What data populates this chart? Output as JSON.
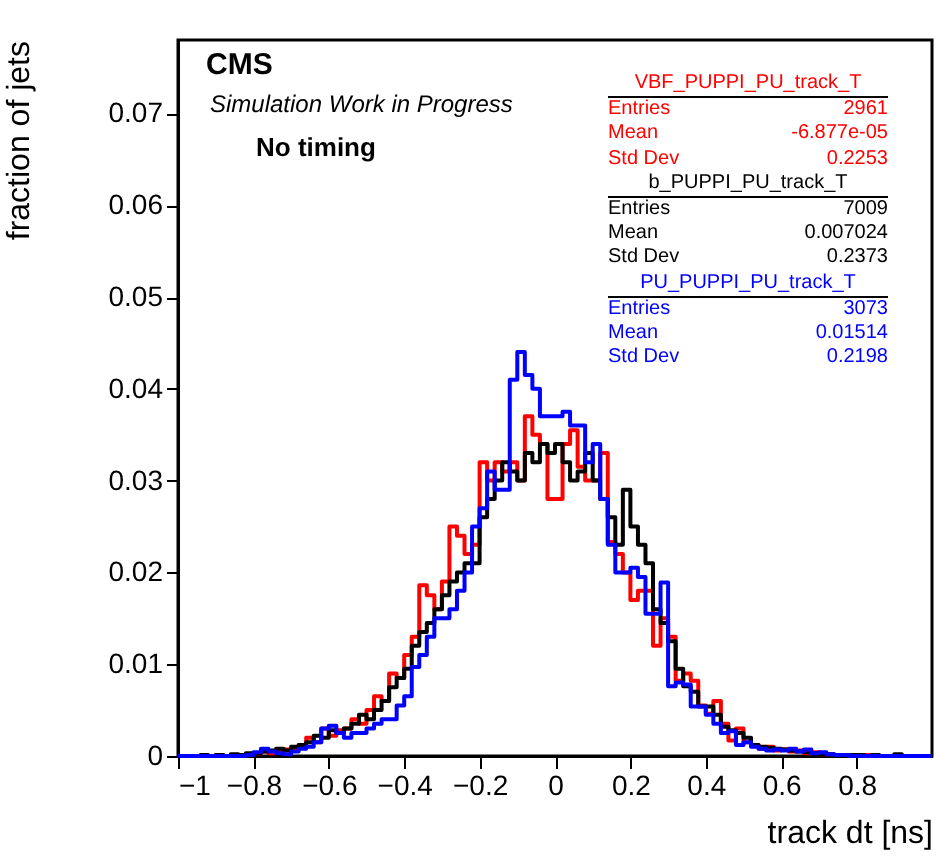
{
  "chart_data": {
    "type": "histogram",
    "xlabel": "track dt [ns]",
    "ylabel": "fraction of jets",
    "annotations": [
      "CMS",
      "Simulation Work in Progress",
      "No timing",
      "Entries",
      "2961",
      "Mean",
      "-6.877e-05",
      "Std Dev",
      "0.2253",
      "Entries",
      "7009",
      "Mean",
      "0.007024",
      "Std Dev",
      "0.2373",
      "Entries",
      "3073",
      "Mean",
      "0.01514",
      "Std Dev",
      "0.2198"
    ],
    "bins": [
      -1,
      -0.98,
      -0.96,
      -0.94,
      -0.92,
      -0.9,
      -0.88,
      -0.86,
      -0.84,
      -0.82,
      -0.8,
      -0.78,
      -0.76,
      -0.74,
      -0.72,
      -0.7,
      -0.68,
      -0.66,
      -0.64,
      -0.62,
      -0.6,
      -0.58,
      -0.56,
      -0.54,
      -0.52,
      -0.5,
      -0.48,
      -0.46,
      -0.44,
      -0.42,
      -0.4,
      -0.38,
      -0.36,
      -0.34,
      -0.32,
      -0.3,
      -0.28,
      -0.26,
      -0.24,
      -0.22,
      -0.2,
      -0.18,
      -0.16,
      -0.14,
      -0.12,
      -0.1,
      -0.08,
      -0.06,
      -0.04,
      -0.02,
      0,
      0.02,
      0.04,
      0.06,
      0.08,
      0.1,
      0.12,
      0.14,
      0.16,
      0.18,
      0.2,
      0.22,
      0.24,
      0.26,
      0.28,
      0.3,
      0.32,
      0.34,
      0.36,
      0.38,
      0.4,
      0.42,
      0.44,
      0.46,
      0.48,
      0.5,
      0.52,
      0.54,
      0.56,
      0.58,
      0.6,
      0.62,
      0.64,
      0.66,
      0.68,
      0.7,
      0.72,
      0.74,
      0.76,
      0.78,
      0.8,
      0.82,
      0.84,
      0.86,
      0.88,
      0.9,
      0.92,
      0.94,
      0.96,
      0.98,
      1
    ],
    "series": [
      {
        "name": "VBF_PUPPI_PU_track_T",
        "color": "#ff0000",
        "values": [
          0,
          0,
          0,
          0,
          0,
          0.0001,
          0,
          0,
          0.0001,
          0.0002,
          0.0003,
          0.0005,
          0.0003,
          0.0005,
          0.0007,
          0.0008,
          0.0012,
          0.002,
          0.0015,
          0.003,
          0.0022,
          0.0028,
          0.003,
          0.004,
          0.0035,
          0.005,
          0.0065,
          0.006,
          0.009,
          0.0085,
          0.011,
          0.013,
          0.0186,
          0.0175,
          0.016,
          0.019,
          0.025,
          0.024,
          0.022,
          0.023,
          0.032,
          0.03,
          0.032,
          0.031,
          0.032,
          0.03,
          0.037,
          0.035,
          0.034,
          0.028,
          0.028,
          0.034,
          0.0355,
          0.0315,
          0.03,
          0.03,
          0.033,
          0.0233,
          0.022,
          0.02,
          0.017,
          0.018,
          0.018,
          0.012,
          0.015,
          0.013,
          0.0082,
          0.009,
          0.0082,
          0.0055,
          0.0046,
          0.006,
          0.0035,
          0.0017,
          0.003,
          0.0015,
          0.0012,
          0.0008,
          0.001,
          0.0006,
          0.0007,
          0.0005,
          0.0006,
          0.0003,
          0.0004,
          0.0002,
          0.0002,
          0.0001,
          0.0001,
          0,
          0,
          0.0001,
          0,
          0,
          0,
          0,
          0,
          0,
          0,
          0
        ]
      },
      {
        "name": "b_PUPPI_PU_track_T",
        "color": "#000000",
        "values": [
          0,
          0,
          0,
          0.0001,
          0,
          0.0001,
          0,
          0.0002,
          0.0001,
          0.0003,
          0.0003,
          0.0005,
          0.0006,
          0.0008,
          0.0006,
          0.001,
          0.0012,
          0.0015,
          0.0022,
          0.002,
          0.0028,
          0.0025,
          0.003,
          0.0035,
          0.0045,
          0.004,
          0.005,
          0.006,
          0.0075,
          0.0085,
          0.0095,
          0.012,
          0.0135,
          0.0145,
          0.016,
          0.0175,
          0.019,
          0.02,
          0.021,
          0.021,
          0.026,
          0.028,
          0.03,
          0.032,
          0.031,
          0.03,
          0.033,
          0.032,
          0.034,
          0.033,
          0.034,
          0.032,
          0.03,
          0.031,
          0.033,
          0.03,
          0.028,
          0.026,
          0.023,
          0.029,
          0.025,
          0.023,
          0.021,
          0.016,
          0.0145,
          0.0125,
          0.0095,
          0.0076,
          0.007,
          0.0054,
          0.0054,
          0.0045,
          0.0032,
          0.0028,
          0.0025,
          0.002,
          0.0012,
          0.001,
          0.0009,
          0.0008,
          0.0007,
          0.0006,
          0.0005,
          0.0004,
          0.0003,
          0.0002,
          0.0002,
          0.0001,
          0.0001,
          0.0001,
          0.0001,
          0,
          0.0001,
          0,
          0,
          0.0002,
          0,
          0,
          0,
          0
        ]
      },
      {
        "name": "PU_PUPPI_PU_track_T",
        "color": "#0000ff",
        "values": [
          0,
          0,
          0,
          0,
          0,
          0,
          0,
          0,
          0,
          0.0001,
          0.0004,
          0.0008,
          0.0005,
          0.0003,
          0.0002,
          0.0005,
          0.0008,
          0.001,
          0.0015,
          0.003,
          0.0033,
          0.0025,
          0.002,
          0.0025,
          0.0025,
          0.003,
          0.0035,
          0.004,
          0.004,
          0.0055,
          0.0065,
          0.0097,
          0.011,
          0.013,
          0.015,
          0.015,
          0.016,
          0.018,
          0.02,
          0.025,
          0.027,
          0.031,
          0.029,
          0.029,
          0.041,
          0.044,
          0.0415,
          0.04,
          0.037,
          0.037,
          0.037,
          0.0375,
          0.036,
          0.036,
          0.032,
          0.034,
          0.028,
          0.023,
          0.02,
          0.02,
          0.0205,
          0.0195,
          0.0155,
          0.0155,
          0.0189,
          0.0076,
          0.008,
          0.0078,
          0.0054,
          0.0054,
          0.0045,
          0.0035,
          0.0025,
          0.0027,
          0.0012,
          0.0015,
          0.001,
          0.0008,
          0.0006,
          0.0007,
          0.0006,
          0.0008,
          0.0005,
          0.0007,
          0.0003,
          0.0004,
          0.0002,
          0.0001,
          0.0001,
          0,
          0,
          0,
          0,
          0,
          0,
          0,
          0,
          0,
          0,
          0
        ]
      }
    ],
    "xlim": [
      -1,
      1
    ],
    "xticks": [
      -1,
      -0.8,
      -0.6,
      -0.4,
      -0.2,
      0,
      0.2,
      0.4,
      0.6,
      0.8
    ],
    "ylim": [
      0,
      0.078
    ],
    "yticks": [
      0,
      0.01,
      0.02,
      0.03,
      0.04,
      0.05,
      0.06,
      0.07
    ],
    "legend": "top right"
  }
}
